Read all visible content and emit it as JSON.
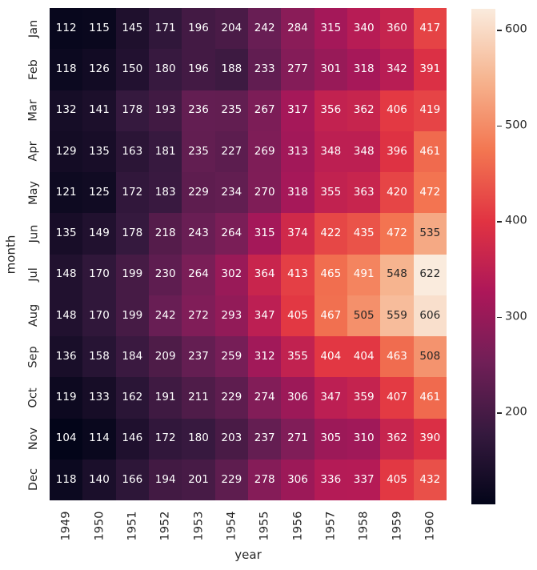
{
  "figure": {
    "background": "#ffffff",
    "text_color": "#262626"
  },
  "chart_data": {
    "type": "heatmap",
    "title": "",
    "xlabel": "year",
    "ylabel": "month",
    "rows": [
      "Jan",
      "Feb",
      "Mar",
      "Apr",
      "May",
      "Jun",
      "Jul",
      "Aug",
      "Sep",
      "Oct",
      "Nov",
      "Dec"
    ],
    "columns": [
      "1949",
      "1950",
      "1951",
      "1952",
      "1953",
      "1954",
      "1955",
      "1956",
      "1957",
      "1958",
      "1959",
      "1960"
    ],
    "values": [
      [
        112,
        115,
        145,
        171,
        196,
        204,
        242,
        284,
        315,
        340,
        360,
        417
      ],
      [
        118,
        126,
        150,
        180,
        196,
        188,
        233,
        277,
        301,
        318,
        342,
        391
      ],
      [
        132,
        141,
        178,
        193,
        236,
        235,
        267,
        317,
        356,
        362,
        406,
        419
      ],
      [
        129,
        135,
        163,
        181,
        235,
        227,
        269,
        313,
        348,
        348,
        396,
        461
      ],
      [
        121,
        125,
        172,
        183,
        229,
        234,
        270,
        318,
        355,
        363,
        420,
        472
      ],
      [
        135,
        149,
        178,
        218,
        243,
        264,
        315,
        374,
        422,
        435,
        472,
        535
      ],
      [
        148,
        170,
        199,
        230,
        264,
        302,
        364,
        413,
        465,
        491,
        548,
        622
      ],
      [
        148,
        170,
        199,
        242,
        272,
        293,
        347,
        405,
        467,
        505,
        559,
        606
      ],
      [
        136,
        158,
        184,
        209,
        237,
        259,
        312,
        355,
        404,
        404,
        463,
        508
      ],
      [
        119,
        133,
        162,
        191,
        211,
        229,
        274,
        306,
        347,
        359,
        407,
        461
      ],
      [
        104,
        114,
        146,
        172,
        180,
        203,
        237,
        271,
        305,
        310,
        362,
        390
      ],
      [
        118,
        140,
        166,
        194,
        201,
        229,
        278,
        306,
        336,
        337,
        405,
        432
      ]
    ],
    "vmin": 104,
    "vmax": 622,
    "annotated": true,
    "grid_lines": false,
    "legend_position": "none",
    "colorbar": {
      "position": "right",
      "ticks": [
        200,
        300,
        400,
        500,
        600
      ]
    },
    "colormap": {
      "name": "rocket",
      "stops": [
        {
          "t": 0.0,
          "color": "#030519"
        },
        {
          "t": 0.143,
          "color": "#35193E"
        },
        {
          "t": 0.286,
          "color": "#701F57"
        },
        {
          "t": 0.429,
          "color": "#AD1759"
        },
        {
          "t": 0.571,
          "color": "#E13342"
        },
        {
          "t": 0.714,
          "color": "#F37651"
        },
        {
          "t": 0.857,
          "color": "#F6B48F"
        },
        {
          "t": 1.0,
          "color": "#FAEBDD"
        }
      ]
    },
    "annotation_colors": {
      "light": "#FFFFFF",
      "dark": "#262626",
      "luminance_threshold": 0.38
    }
  }
}
